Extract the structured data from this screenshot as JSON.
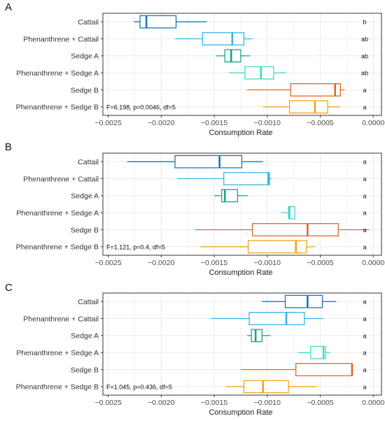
{
  "chart_data": [
    {
      "type": "boxplot",
      "panel_label": "A",
      "xlabel": "Consumption Rate",
      "ylabel": "",
      "xlim": [
        -0.0025,
        0.0
      ],
      "x_ticks": [
        "−0.0025",
        "−0.0020",
        "−0.0015",
        "−0.0010",
        "−0.0005",
        "0.0000"
      ],
      "x_tick_values": [
        -0.0025,
        -0.002,
        -0.0015,
        -0.001,
        -0.0005,
        0.0
      ],
      "annotation": "F=6.198, p=0.0046, df=5",
      "grid": true,
      "categories": [
        "Cattail",
        "Phenanthrene + Cattail",
        "Sedge A",
        "Phenanthrene + Sedge A",
        "Sedge B",
        "Phenanthrene + Sedge B"
      ],
      "letters": [
        "b",
        "ab",
        "ab",
        "ab",
        "a",
        "a"
      ],
      "boxes": [
        {
          "min": -0.00226,
          "q1": -0.0022,
          "median": -0.00214,
          "q3": -0.00186,
          "max": -0.00157
        },
        {
          "min": -0.00187,
          "q1": -0.00161,
          "median": -0.00133,
          "q3": -0.00122,
          "max": -0.00114
        },
        {
          "min": -0.00148,
          "q1": -0.0014,
          "median": -0.00134,
          "q3": -0.00125,
          "max": -0.00116
        },
        {
          "min": -0.00136,
          "q1": -0.00121,
          "median": -0.00106,
          "q3": -0.00094,
          "max": -0.00082
        },
        {
          "min": -0.00119,
          "q1": -0.00078,
          "median": -0.00036,
          "q3": -0.00031,
          "max": -0.00027
        },
        {
          "min": -0.00104,
          "q1": -0.00079,
          "median": -0.00055,
          "q3": -0.00043,
          "max": -0.00031
        }
      ]
    },
    {
      "type": "boxplot",
      "panel_label": "B",
      "xlabel": "Consumption Rate",
      "ylabel": "",
      "xlim": [
        -0.0025,
        0.0
      ],
      "x_ticks": [
        "−0.0025",
        "−0.0020",
        "−0.0015",
        "−0.0010",
        "−0.0005",
        "0.0000"
      ],
      "x_tick_values": [
        -0.0025,
        -0.002,
        -0.0015,
        -0.001,
        -0.0005,
        0.0
      ],
      "annotation": "F=1.121, p=0.4, df=5",
      "grid": true,
      "categories": [
        "Cattail",
        "Phenanthrene + Cattail",
        "Sedge A",
        "Phenanthrene + Sedge A",
        "Sedge B",
        "Phenanthrene + Sedge B"
      ],
      "letters": [
        "a",
        "a",
        "a",
        "a",
        "a",
        "a"
      ],
      "boxes": [
        {
          "min": -0.00232,
          "q1": -0.00187,
          "median": -0.00145,
          "q3": -0.00124,
          "max": -0.00104
        },
        {
          "min": -0.00185,
          "q1": -0.00141,
          "median": -0.00099,
          "q3": -0.00098,
          "max": -0.00096
        },
        {
          "min": -0.0015,
          "q1": -0.00143,
          "median": -0.0014,
          "q3": -0.00128,
          "max": -0.00118
        },
        {
          "min": -0.00087,
          "q1": -0.0008,
          "median": -0.00079,
          "q3": -0.00074,
          "max": -0.00074
        },
        {
          "min": -0.00168,
          "q1": -0.00114,
          "median": -0.00062,
          "q3": -0.00033,
          "max": -4e-05
        },
        {
          "min": -0.00163,
          "q1": -0.00118,
          "median": -0.00073,
          "q3": -0.00063,
          "max": -0.00055
        }
      ]
    },
    {
      "type": "boxplot",
      "panel_label": "C",
      "xlabel": "Consumption Rate",
      "ylabel": "",
      "xlim": [
        -0.0025,
        0.0
      ],
      "x_ticks": [
        "−0.0025",
        "−0.0020",
        "−0.0015",
        "−0.0010",
        "−0.0005",
        "0.0000"
      ],
      "x_tick_values": [
        -0.0025,
        -0.002,
        -0.0015,
        -0.001,
        -0.0005,
        0.0
      ],
      "annotation": "F=1.045, p=0.436, df=5",
      "grid": true,
      "categories": [
        "Cattail",
        "Phenanthrene + Cattail",
        "Sedge A",
        "Phenanthrene + Sedge A",
        "Sedge B",
        "Phenanthrene + Sedge B"
      ],
      "letters": [
        "a",
        "a",
        "a",
        "a",
        "a",
        "a"
      ],
      "boxes": [
        {
          "min": -0.00105,
          "q1": -0.00083,
          "median": -0.00062,
          "q3": -0.00048,
          "max": -0.00035
        },
        {
          "min": -0.00153,
          "q1": -0.00117,
          "median": -0.00082,
          "q3": -0.00065,
          "max": -0.00047
        },
        {
          "min": -0.00119,
          "q1": -0.00115,
          "median": -0.00111,
          "q3": -0.00105,
          "max": -0.00097
        },
        {
          "min": -0.00071,
          "q1": -0.00059,
          "median": -0.00047,
          "q3": -0.00045,
          "max": -0.00041
        },
        {
          "min": -0.00125,
          "q1": -0.00073,
          "median": -0.0002,
          "q3": -0.0002,
          "max": -0.0002
        },
        {
          "min": -0.00139,
          "q1": -0.00122,
          "median": -0.00104,
          "q3": -0.0008,
          "max": -0.00053
        }
      ]
    }
  ],
  "colors": {
    "series": [
      "#1778b6",
      "#35b6e6",
      "#17a584",
      "#43d8cf",
      "#e3661f",
      "#f3a31c"
    ],
    "grid": "#ebebeb",
    "panel_border": "#333333",
    "text": "#333333"
  }
}
